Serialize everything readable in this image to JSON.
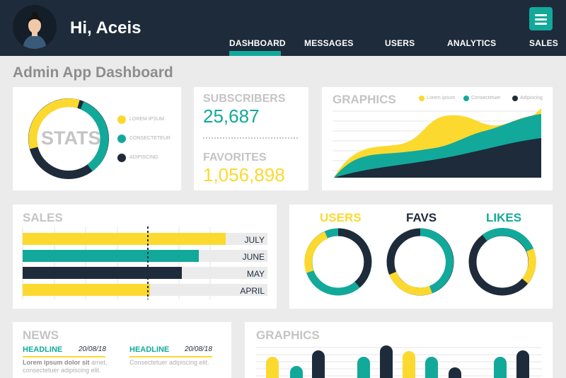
{
  "header": {
    "greeting": "Hi, Aceis",
    "nav": [
      {
        "label": "DASHBOARD"
      },
      {
        "label": "MESSAGES"
      },
      {
        "label": "USERS"
      },
      {
        "label": "ANALYTICS"
      },
      {
        "label": "SALES"
      }
    ],
    "active_nav": "DASHBOARD"
  },
  "page_title": "Admin App Dashboard",
  "stats_card": {
    "center_label": "STATS",
    "legend": [
      {
        "label": "LOREM IPSUM",
        "color": "#fcd92f"
      },
      {
        "label": "CONSECTETEUR",
        "color": "#12a99b"
      },
      {
        "label": "ADIPISCING",
        "color": "#1e2b3a"
      }
    ]
  },
  "counters": {
    "subscribers_label": "SUBSCRIBERS",
    "subscribers_value": "25,687",
    "favorites_label": "FAVORITES",
    "favorites_value": "1,056,898"
  },
  "graphics_top": {
    "title": "GRAPHICS",
    "legend": [
      {
        "label": "Lorem ipsum",
        "color": "#fcd92f"
      },
      {
        "label": "Consectetuer",
        "color": "#12a99b"
      },
      {
        "label": "Adipiscing",
        "color": "#1e2b3a"
      }
    ]
  },
  "sales_card": {
    "title": "SALES",
    "bars": [
      {
        "label": "JULY",
        "value": 0.83,
        "color": "#fcd92f"
      },
      {
        "label": "JUNE",
        "value": 0.72,
        "color": "#12a99b"
      },
      {
        "label": "MAY",
        "value": 0.65,
        "color": "#1e2b3a"
      },
      {
        "label": "APRIL",
        "value": 0.52,
        "color": "#fcd92f"
      }
    ]
  },
  "rings_card": {
    "items": [
      {
        "label": "USERS",
        "color": "#fcd92f"
      },
      {
        "label": "FAVS",
        "color": "#1e2b3a"
      },
      {
        "label": "LIKES",
        "color": "#12a99b"
      }
    ]
  },
  "news_card": {
    "title": "NEWS",
    "items": [
      {
        "headline": "HEADLINE",
        "date": "20/08/18",
        "body_bold": "Lorem ipsum dolor sit",
        "body": " amet, consectetuer adipiscing elit."
      },
      {
        "headline": "HEADLINE",
        "date": "20/08/18",
        "body_bold": "",
        "body": "Consectetuer adipiscing elit."
      }
    ]
  },
  "graphics_bottom": {
    "title": "GRAPHICS"
  },
  "colors": {
    "navy": "#1e2b3a",
    "teal": "#12a99b",
    "yellow": "#fcd92f",
    "muted": "#c4c4c4"
  },
  "icons": [
    "user-avatar-icon",
    "hamburger-menu-icon"
  ]
}
